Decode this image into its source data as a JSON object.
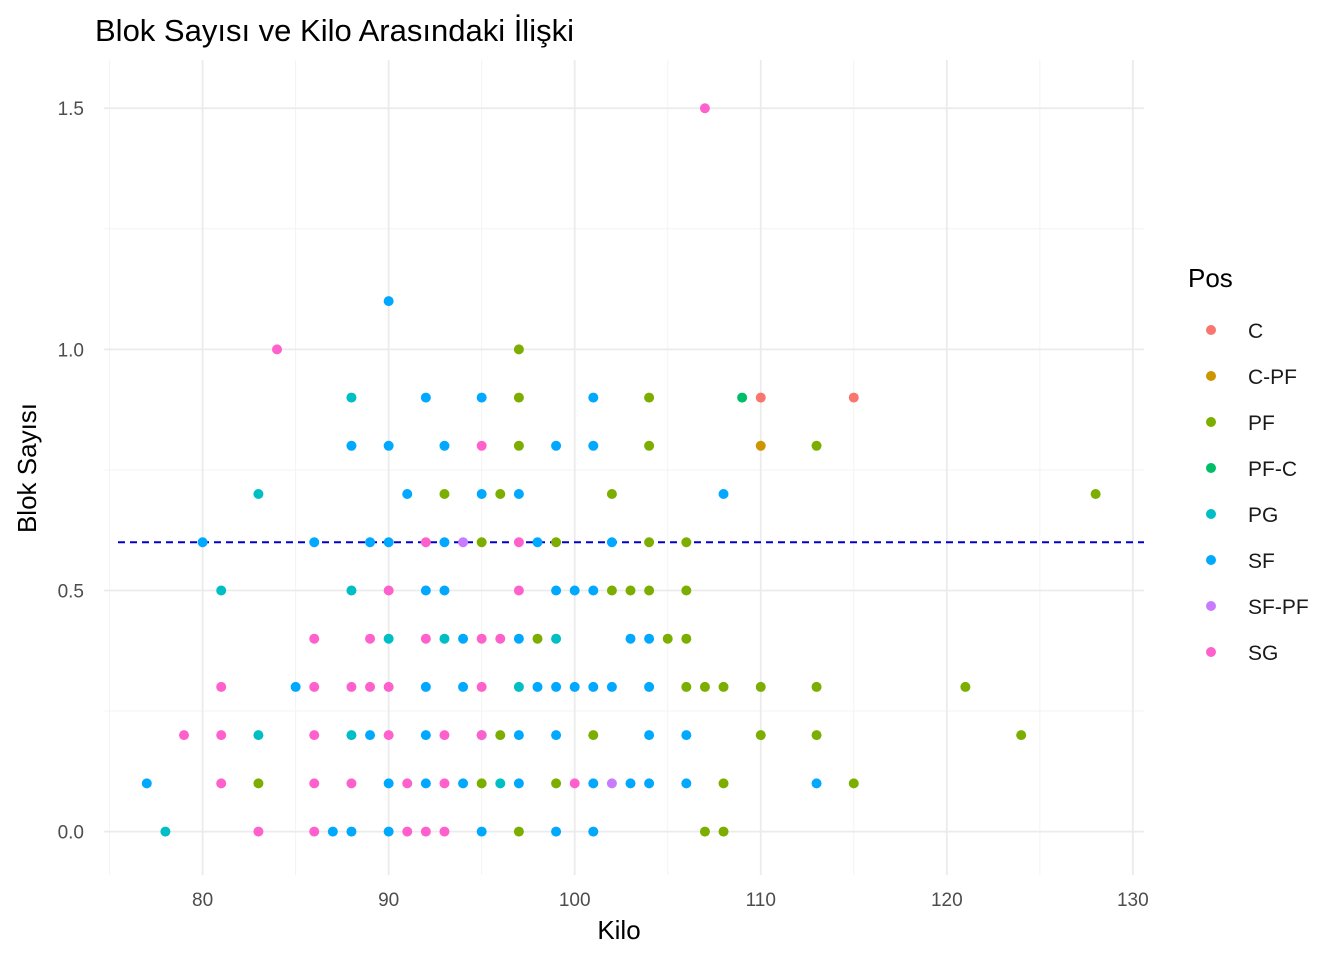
{
  "chart_data": {
    "type": "scatter",
    "title": "Blok Sayısı ve Kilo Arasındaki İlişki",
    "xlabel": "Kilo",
    "ylabel": "Blok Sayısı",
    "xlim": [
      74.7,
      130.6
    ],
    "ylim": [
      -0.09,
      1.6
    ],
    "x_ticks": [
      80,
      90,
      100,
      110,
      120,
      130
    ],
    "y_ticks": [
      0.0,
      0.5,
      1.0,
      1.5
    ],
    "x_tick_labels": [
      "80",
      "90",
      "100",
      "110",
      "120",
      "130"
    ],
    "y_tick_labels": [
      "0.0",
      "0.5",
      "1.0",
      "1.5"
    ],
    "grid": true,
    "legend": {
      "title": "Pos",
      "placement": "right"
    },
    "reference_line": {
      "y": 0.6,
      "style": "dashed",
      "color": "#0000CD"
    },
    "series": [
      {
        "name": "C",
        "color": "#F8766D",
        "points": [
          [
            110,
            0.9
          ],
          [
            115,
            0.9
          ]
        ]
      },
      {
        "name": "C-PF",
        "color": "#CD9600",
        "points": [
          [
            110,
            0.8
          ]
        ]
      },
      {
        "name": "PF",
        "color": "#7CAE00",
        "points": [
          [
            97,
            1.0
          ],
          [
            97,
            0.9
          ],
          [
            104,
            0.9
          ],
          [
            97,
            0.8
          ],
          [
            104,
            0.8
          ],
          [
            113,
            0.8
          ],
          [
            93,
            0.7
          ],
          [
            96,
            0.7
          ],
          [
            102,
            0.7
          ],
          [
            128,
            0.7
          ],
          [
            95,
            0.6
          ],
          [
            99,
            0.6
          ],
          [
            104,
            0.6
          ],
          [
            106,
            0.6
          ],
          [
            102,
            0.5
          ],
          [
            103,
            0.5
          ],
          [
            104,
            0.5
          ],
          [
            106,
            0.5
          ],
          [
            98,
            0.4
          ],
          [
            105,
            0.4
          ],
          [
            106,
            0.4
          ],
          [
            106,
            0.3
          ],
          [
            107,
            0.3
          ],
          [
            108,
            0.3
          ],
          [
            110,
            0.3
          ],
          [
            113,
            0.3
          ],
          [
            121,
            0.3
          ],
          [
            96,
            0.2
          ],
          [
            101,
            0.2
          ],
          [
            110,
            0.2
          ],
          [
            113,
            0.2
          ],
          [
            124,
            0.2
          ],
          [
            83,
            0.1
          ],
          [
            95,
            0.1
          ],
          [
            99,
            0.1
          ],
          [
            108,
            0.1
          ],
          [
            115,
            0.1
          ],
          [
            97,
            0.0
          ],
          [
            107,
            0.0
          ],
          [
            108,
            0.0
          ]
        ]
      },
      {
        "name": "PF-C",
        "color": "#00BE67",
        "points": [
          [
            109,
            0.9
          ]
        ]
      },
      {
        "name": "PG",
        "color": "#00BFC4",
        "points": [
          [
            88,
            0.9
          ],
          [
            83,
            0.7
          ],
          [
            81,
            0.5
          ],
          [
            88,
            0.5
          ],
          [
            90,
            0.4
          ],
          [
            93,
            0.4
          ],
          [
            99,
            0.4
          ],
          [
            97,
            0.3
          ],
          [
            83,
            0.2
          ],
          [
            88,
            0.2
          ],
          [
            96,
            0.1
          ],
          [
            78,
            0.0
          ]
        ]
      },
      {
        "name": "SF",
        "color": "#00A9FF",
        "points": [
          [
            90,
            1.1
          ],
          [
            92,
            0.9
          ],
          [
            95,
            0.9
          ],
          [
            101,
            0.9
          ],
          [
            88,
            0.8
          ],
          [
            90,
            0.8
          ],
          [
            93,
            0.8
          ],
          [
            99,
            0.8
          ],
          [
            101,
            0.8
          ],
          [
            91,
            0.7
          ],
          [
            95,
            0.7
          ],
          [
            97,
            0.7
          ],
          [
            108,
            0.7
          ],
          [
            80,
            0.6
          ],
          [
            86,
            0.6
          ],
          [
            89,
            0.6
          ],
          [
            90,
            0.6
          ],
          [
            93,
            0.6
          ],
          [
            98,
            0.6
          ],
          [
            102,
            0.6
          ],
          [
            92,
            0.5
          ],
          [
            93,
            0.5
          ],
          [
            99,
            0.5
          ],
          [
            100,
            0.5
          ],
          [
            101,
            0.5
          ],
          [
            94,
            0.4
          ],
          [
            97,
            0.4
          ],
          [
            103,
            0.4
          ],
          [
            104,
            0.4
          ],
          [
            85,
            0.3
          ],
          [
            92,
            0.3
          ],
          [
            94,
            0.3
          ],
          [
            98,
            0.3
          ],
          [
            99,
            0.3
          ],
          [
            100,
            0.3
          ],
          [
            101,
            0.3
          ],
          [
            102,
            0.3
          ],
          [
            104,
            0.3
          ],
          [
            89,
            0.2
          ],
          [
            92,
            0.2
          ],
          [
            95,
            0.2
          ],
          [
            97,
            0.2
          ],
          [
            99,
            0.2
          ],
          [
            104,
            0.2
          ],
          [
            106,
            0.2
          ],
          [
            77,
            0.1
          ],
          [
            90,
            0.1
          ],
          [
            92,
            0.1
          ],
          [
            94,
            0.1
          ],
          [
            97,
            0.1
          ],
          [
            101,
            0.1
          ],
          [
            103,
            0.1
          ],
          [
            104,
            0.1
          ],
          [
            106,
            0.1
          ],
          [
            113,
            0.1
          ],
          [
            87,
            0.0
          ],
          [
            88,
            0.0
          ],
          [
            90,
            0.0
          ],
          [
            95,
            0.0
          ],
          [
            99,
            0.0
          ],
          [
            101,
            0.0
          ]
        ]
      },
      {
        "name": "SF-PF",
        "color": "#C77CFF",
        "points": [
          [
            94,
            0.6
          ],
          [
            102,
            0.1
          ]
        ]
      },
      {
        "name": "SG",
        "color": "#FF61CC",
        "points": [
          [
            107,
            1.5
          ],
          [
            84,
            1.0
          ],
          [
            95,
            0.8
          ],
          [
            92,
            0.6
          ],
          [
            97,
            0.6
          ],
          [
            90,
            0.5
          ],
          [
            97,
            0.5
          ],
          [
            86,
            0.4
          ],
          [
            89,
            0.4
          ],
          [
            92,
            0.4
          ],
          [
            95,
            0.4
          ],
          [
            96,
            0.4
          ],
          [
            81,
            0.3
          ],
          [
            86,
            0.3
          ],
          [
            88,
            0.3
          ],
          [
            89,
            0.3
          ],
          [
            90,
            0.3
          ],
          [
            95,
            0.3
          ],
          [
            79,
            0.2
          ],
          [
            81,
            0.2
          ],
          [
            86,
            0.2
          ],
          [
            90,
            0.2
          ],
          [
            93,
            0.2
          ],
          [
            95,
            0.2
          ],
          [
            81,
            0.1
          ],
          [
            86,
            0.1
          ],
          [
            88,
            0.1
          ],
          [
            91,
            0.1
          ],
          [
            93,
            0.1
          ],
          [
            100,
            0.1
          ],
          [
            83,
            0.0
          ],
          [
            86,
            0.0
          ],
          [
            91,
            0.0
          ],
          [
            92,
            0.0
          ],
          [
            93,
            0.0
          ]
        ]
      }
    ]
  }
}
